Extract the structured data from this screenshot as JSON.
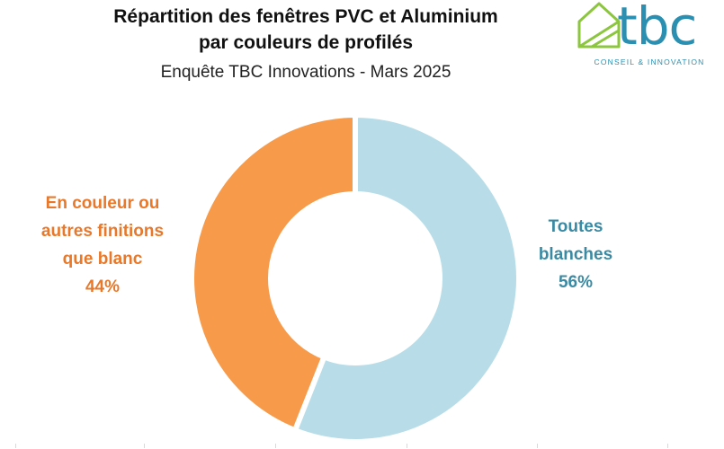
{
  "header": {
    "title_line1": "Répartition des fenêtres PVC et Aluminium",
    "title_line2": "par couleurs de profilés",
    "subtitle": "Enquête TBC Innovations - Mars 2025"
  },
  "logo": {
    "text": "tbc",
    "tagline": "CONSEIL & INNOVATION",
    "icon": "house-outline-icon",
    "colors": {
      "house": "#8cc63f",
      "text": "#2a8fb0"
    }
  },
  "chart_data": {
    "type": "pie",
    "variant": "donut",
    "title": "Répartition des fenêtres PVC et Aluminium par couleurs de profilés",
    "subtitle": "Enquête TBC Innovations - Mars 2025",
    "slices": [
      {
        "label": "Toutes blanches",
        "label_lines": [
          "Toutes",
          "blanches"
        ],
        "value": 56,
        "value_label": "56%",
        "color": "#b8dde8",
        "label_color": "#3b8aa3"
      },
      {
        "label": "En couleur ou autres finitions que blanc",
        "label_lines": [
          "En couleur ou",
          "autres finitions",
          "que blanc"
        ],
        "value": 44,
        "value_label": "44%",
        "color": "#f79a4a",
        "label_color": "#e8782a"
      }
    ],
    "start_angle_deg": 0,
    "direction": "clockwise",
    "legend": "none"
  }
}
